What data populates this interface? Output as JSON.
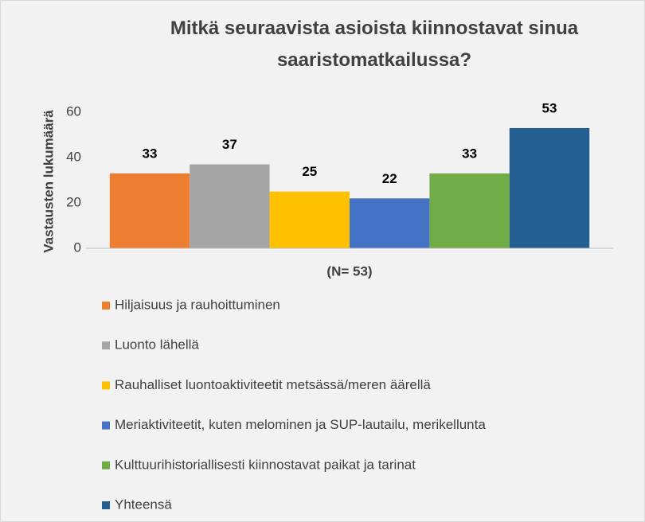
{
  "chart_data": {
    "type": "bar",
    "title": "Mitkä seuraavista asioista kiinnostavat sinua saaristomatkailussa?",
    "y_label": "Vastausten lukumäärä",
    "categories": [
      "(N= 53)"
    ],
    "series": [
      {
        "name": "Hiljaisuus ja rauhoittuminen",
        "color": "#ed7d31",
        "values": [
          33
        ]
      },
      {
        "name": "Luonto lähellä",
        "color": "#a5a5a5",
        "values": [
          37
        ]
      },
      {
        "name": "Rauhalliset luontoaktiviteetit metsässä/meren äärellä",
        "color": "#ffc000",
        "values": [
          25
        ]
      },
      {
        "name": "Meriaktiviteetit, kuten melominen ja SUP-lautailu, merikellunta",
        "color": "#4472c4",
        "values": [
          22
        ]
      },
      {
        "name": "Kulttuurihistoriallisesti kiinnostavat paikat ja tarinat",
        "color": "#70ad47",
        "values": [
          33
        ]
      },
      {
        "name": "Yhteensä",
        "color": "#255e91",
        "values": [
          53
        ]
      }
    ],
    "ylim": [
      0,
      60
    ],
    "yticks": [
      0,
      20,
      40,
      60
    ],
    "grid": false,
    "legend": "bottom"
  }
}
